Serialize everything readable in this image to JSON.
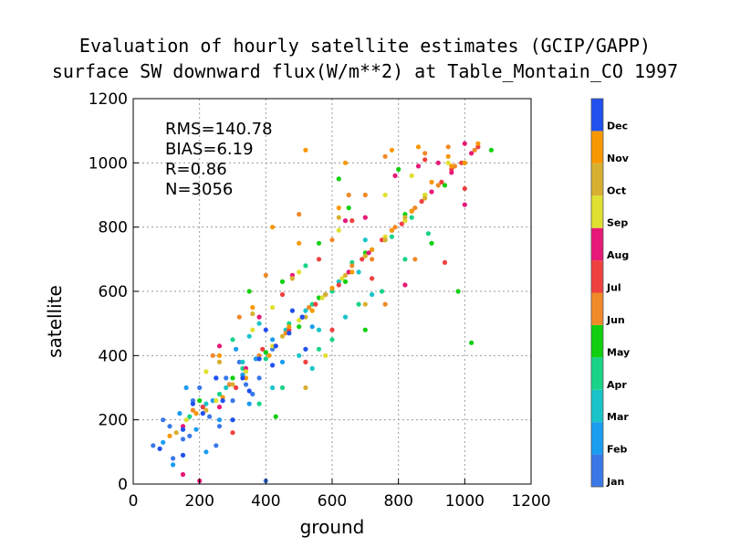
{
  "chart_data": {
    "type": "scatter",
    "title": "Evaluation of hourly satellite estimates (GCIP/GAPP)",
    "subtitle": "surface SW downward flux(W/m**2) at Table_Montain_CO 1997",
    "xlabel": "ground",
    "ylabel": "satellite",
    "xlim": [
      0,
      1200
    ],
    "ylim": [
      0,
      1200
    ],
    "xticks": [
      "0",
      "200",
      "400",
      "600",
      "800",
      "1000",
      "1200"
    ],
    "yticks": [
      "0",
      "200",
      "400",
      "600",
      "800",
      "1000",
      "1200"
    ],
    "grid": true,
    "stats": [
      "RMS=140.78",
      "BIAS=6.19",
      "R=0.86",
      "N=3056"
    ],
    "colorbar": {
      "labels": [
        "Jan",
        "Feb",
        "Mar",
        "Apr",
        "May",
        "Jun",
        "Jul",
        "Aug",
        "Sep",
        "Oct",
        "Nov",
        "Dec"
      ],
      "colors": [
        "#3a78e8",
        "#1a9cf0",
        "#18c4c8",
        "#18d488",
        "#10d010",
        "#f08a28",
        "#f04040",
        "#e81878",
        "#e0e030",
        "#d8b030",
        "#f89800",
        "#2050f0"
      ]
    },
    "series_by_month": [
      {
        "name": "Jan",
        "points": [
          [
            60,
            120
          ],
          [
            110,
            180
          ],
          [
            150,
            140
          ],
          [
            200,
            300
          ],
          [
            230,
            210
          ],
          [
            260,
            180
          ],
          [
            300,
            260
          ],
          [
            340,
            310
          ],
          [
            380,
            330
          ],
          [
            420,
            420
          ],
          [
            120,
            80
          ],
          [
            180,
            260
          ],
          [
            250,
            120
          ],
          [
            320,
            380
          ],
          [
            400,
            10
          ],
          [
            280,
            330
          ],
          [
            90,
            200
          ],
          [
            170,
            150
          ],
          [
            210,
            240
          ],
          [
            360,
            280
          ]
        ]
      },
      {
        "name": "Feb",
        "points": [
          [
            90,
            130
          ],
          [
            140,
            220
          ],
          [
            190,
            170
          ],
          [
            240,
            260
          ],
          [
            290,
            310
          ],
          [
            330,
            340
          ],
          [
            370,
            390
          ],
          [
            420,
            450
          ],
          [
            470,
            470
          ],
          [
            510,
            520
          ],
          [
            160,
            300
          ],
          [
            260,
            200
          ],
          [
            350,
            250
          ],
          [
            450,
            380
          ],
          [
            220,
            100
          ],
          [
            310,
            420
          ],
          [
            540,
            490
          ],
          [
            120,
            60
          ]
        ]
      },
      {
        "name": "Mar",
        "points": [
          [
            150,
            170
          ],
          [
            220,
            250
          ],
          [
            280,
            300
          ],
          [
            330,
            380
          ],
          [
            400,
            410
          ],
          [
            460,
            480
          ],
          [
            520,
            540
          ],
          [
            580,
            590
          ],
          [
            620,
            630
          ],
          [
            680,
            660
          ],
          [
            300,
            200
          ],
          [
            420,
            300
          ],
          [
            500,
            400
          ],
          [
            560,
            480
          ],
          [
            250,
            330
          ],
          [
            380,
            500
          ],
          [
            640,
            520
          ],
          [
            700,
            760
          ],
          [
            350,
            460
          ],
          [
            540,
            360
          ],
          [
            720,
            590
          ]
        ]
      },
      {
        "name": "Apr",
        "points": [
          [
            170,
            210
          ],
          [
            260,
            280
          ],
          [
            330,
            360
          ],
          [
            400,
            390
          ],
          [
            470,
            500
          ],
          [
            540,
            560
          ],
          [
            600,
            600
          ],
          [
            660,
            690
          ],
          [
            720,
            730
          ],
          [
            780,
            770
          ],
          [
            840,
            830
          ],
          [
            300,
            450
          ],
          [
            450,
            300
          ],
          [
            600,
            450
          ],
          [
            750,
            600
          ],
          [
            520,
            680
          ],
          [
            680,
            560
          ],
          [
            820,
            700
          ],
          [
            380,
            250
          ],
          [
            890,
            780
          ],
          [
            560,
            420
          ]
        ]
      },
      {
        "name": "May",
        "points": [
          [
            200,
            260
          ],
          [
            300,
            330
          ],
          [
            400,
            410
          ],
          [
            500,
            490
          ],
          [
            560,
            580
          ],
          [
            640,
            630
          ],
          [
            700,
            720
          ],
          [
            760,
            760
          ],
          [
            820,
            840
          ],
          [
            880,
            900
          ],
          [
            940,
            930
          ],
          [
            1000,
            1000
          ],
          [
            1080,
            1040
          ],
          [
            350,
            600
          ],
          [
            450,
            630
          ],
          [
            650,
            860
          ],
          [
            800,
            980
          ],
          [
            900,
            750
          ],
          [
            980,
            600
          ],
          [
            1020,
            440
          ],
          [
            700,
            480
          ],
          [
            560,
            750
          ],
          [
            620,
            950
          ],
          [
            430,
            210
          ]
        ]
      },
      {
        "name": "Jun",
        "points": [
          [
            180,
            230
          ],
          [
            290,
            310
          ],
          [
            380,
            400
          ],
          [
            460,
            470
          ],
          [
            530,
            550
          ],
          [
            600,
            610
          ],
          [
            660,
            680
          ],
          [
            720,
            700
          ],
          [
            790,
            800
          ],
          [
            850,
            860
          ],
          [
            920,
            930
          ],
          [
            970,
            990
          ],
          [
            1030,
            1040
          ],
          [
            400,
            650
          ],
          [
            500,
            840
          ],
          [
            650,
            900
          ],
          [
            760,
            1020
          ],
          [
            880,
            1030
          ],
          [
            950,
            1050
          ],
          [
            600,
            760
          ],
          [
            320,
            520
          ],
          [
            760,
            560
          ],
          [
            850,
            700
          ],
          [
            240,
            400
          ],
          [
            700,
            900
          ]
        ]
      },
      {
        "name": "Jul",
        "points": [
          [
            210,
            240
          ],
          [
            310,
            300
          ],
          [
            390,
            420
          ],
          [
            470,
            480
          ],
          [
            550,
            560
          ],
          [
            620,
            620
          ],
          [
            690,
            700
          ],
          [
            750,
            760
          ],
          [
            810,
            810
          ],
          [
            870,
            880
          ],
          [
            930,
            940
          ],
          [
            990,
            1000
          ],
          [
            1040,
            1050
          ],
          [
            450,
            590
          ],
          [
            560,
            700
          ],
          [
            660,
            820
          ],
          [
            880,
            1010
          ],
          [
            960,
            980
          ],
          [
            1000,
            920
          ],
          [
            720,
            640
          ],
          [
            600,
            480
          ],
          [
            520,
            380
          ],
          [
            940,
            690
          ],
          [
            300,
            160
          ]
        ]
      },
      {
        "name": "Aug",
        "points": [
          [
            150,
            180
          ],
          [
            260,
            240
          ],
          [
            340,
            360
          ],
          [
            430,
            430
          ],
          [
            510,
            520
          ],
          [
            580,
            590
          ],
          [
            650,
            660
          ],
          [
            710,
            720
          ],
          [
            780,
            790
          ],
          [
            840,
            850
          ],
          [
            900,
            910
          ],
          [
            960,
            970
          ],
          [
            1020,
            1030
          ],
          [
            380,
            520
          ],
          [
            480,
            650
          ],
          [
            640,
            820
          ],
          [
            790,
            960
          ],
          [
            860,
            990
          ],
          [
            920,
            1000
          ],
          [
            1000,
            1060
          ],
          [
            200,
            10
          ],
          [
            150,
            30
          ],
          [
            700,
            830
          ],
          [
            820,
            620
          ],
          [
            1000,
            870
          ],
          [
            260,
            430
          ]
        ]
      },
      {
        "name": "Sep",
        "points": [
          [
            160,
            200
          ],
          [
            250,
            260
          ],
          [
            340,
            350
          ],
          [
            420,
            430
          ],
          [
            500,
            510
          ],
          [
            570,
            580
          ],
          [
            630,
            640
          ],
          [
            700,
            710
          ],
          [
            760,
            770
          ],
          [
            820,
            820
          ],
          [
            880,
            900
          ],
          [
            500,
            660
          ],
          [
            620,
            790
          ],
          [
            760,
            900
          ],
          [
            420,
            550
          ],
          [
            580,
            400
          ],
          [
            360,
            480
          ],
          [
            220,
            350
          ],
          [
            840,
            960
          ],
          [
            950,
            1000
          ]
        ]
      },
      {
        "name": "Oct",
        "points": [
          [
            130,
            160
          ],
          [
            220,
            230
          ],
          [
            300,
            310
          ],
          [
            380,
            390
          ],
          [
            450,
            460
          ],
          [
            520,
            520
          ],
          [
            580,
            590
          ],
          [
            640,
            650
          ],
          [
            700,
            710
          ],
          [
            760,
            760
          ],
          [
            820,
            830
          ],
          [
            880,
            890
          ],
          [
            360,
            530
          ],
          [
            480,
            640
          ],
          [
            620,
            830
          ],
          [
            520,
            300
          ],
          [
            700,
            560
          ],
          [
            260,
            380
          ]
        ]
      },
      {
        "name": "Nov",
        "points": [
          [
            110,
            150
          ],
          [
            190,
            220
          ],
          [
            270,
            270
          ],
          [
            340,
            330
          ],
          [
            410,
            400
          ],
          [
            470,
            490
          ],
          [
            540,
            540
          ],
          [
            600,
            610
          ],
          [
            660,
            660
          ],
          [
            720,
            730
          ],
          [
            780,
            790
          ],
          [
            840,
            850
          ],
          [
            900,
            940
          ],
          [
            960,
            990
          ],
          [
            1000,
            1000
          ],
          [
            1040,
            1060
          ],
          [
            420,
            800
          ],
          [
            520,
            1040
          ],
          [
            640,
            1000
          ],
          [
            780,
            1040
          ],
          [
            860,
            1050
          ],
          [
            950,
            1020
          ],
          [
            360,
            550
          ],
          [
            260,
            400
          ],
          [
            500,
            750
          ],
          [
            620,
            860
          ]
        ]
      },
      {
        "name": "Dec",
        "points": [
          [
            80,
            110
          ],
          [
            150,
            170
          ],
          [
            210,
            220
          ],
          [
            270,
            260
          ],
          [
            330,
            330
          ],
          [
            380,
            390
          ],
          [
            430,
            430
          ],
          [
            470,
            470
          ],
          [
            510,
            520
          ],
          [
            180,
            250
          ],
          [
            250,
            330
          ],
          [
            350,
            290
          ],
          [
            420,
            370
          ],
          [
            300,
            200
          ],
          [
            150,
            90
          ],
          [
            480,
            540
          ],
          [
            520,
            420
          ],
          [
            400,
            480
          ]
        ]
      }
    ]
  }
}
